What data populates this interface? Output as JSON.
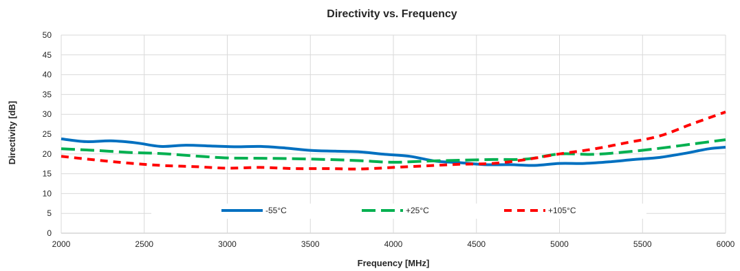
{
  "chart_data": {
    "type": "line",
    "title": "Directivity vs. Frequency",
    "xlabel": "Frequency [MHz]",
    "ylabel": "Directivity [dB]",
    "xlim": [
      2000,
      6000
    ],
    "ylim": [
      0,
      50
    ],
    "xticks": [
      "2000",
      "2500",
      "3000",
      "3500",
      "4000",
      "4500",
      "5000",
      "5500",
      "6000"
    ],
    "yticks": [
      "0",
      "5",
      "10",
      "15",
      "20",
      "25",
      "30",
      "35",
      "40",
      "45",
      "50"
    ],
    "grid": true,
    "legend_position": "bottom-center",
    "series": [
      {
        "name": "-55°C",
        "color": "#0070C0",
        "dash": "solid",
        "x": [
          2000,
          2150,
          2300,
          2450,
          2600,
          2750,
          2900,
          3050,
          3200,
          3350,
          3500,
          3650,
          3800,
          3950,
          4100,
          4250,
          4400,
          4550,
          4700,
          4850,
          5000,
          5150,
          5300,
          5450,
          5600,
          5750,
          5900,
          6000
        ],
        "y": [
          23.8,
          23.1,
          23.3,
          22.8,
          21.9,
          22.2,
          22.0,
          21.8,
          21.9,
          21.5,
          20.9,
          20.7,
          20.5,
          19.9,
          19.4,
          18.2,
          17.8,
          17.3,
          17.3,
          17.1,
          17.6,
          17.6,
          18.0,
          18.6,
          19.1,
          20.1,
          21.3,
          21.7
        ]
      },
      {
        "name": "+25°C",
        "color": "#00B050",
        "dash": "long-dash",
        "x": [
          2000,
          2200,
          2400,
          2600,
          2800,
          3000,
          3200,
          3400,
          3600,
          3800,
          4000,
          4200,
          4400,
          4600,
          4800,
          5000,
          5200,
          5400,
          5600,
          5800,
          6000
        ],
        "y": [
          21.3,
          20.9,
          20.4,
          20.1,
          19.5,
          19.0,
          18.9,
          18.8,
          18.6,
          18.3,
          17.9,
          18.2,
          18.4,
          18.6,
          18.7,
          20.0,
          19.9,
          20.5,
          21.4,
          22.5,
          23.6
        ]
      },
      {
        "name": "+105°C",
        "color": "#FF0000",
        "dash": "dash",
        "x": [
          2000,
          2200,
          2400,
          2600,
          2800,
          3000,
          3200,
          3400,
          3600,
          3800,
          4000,
          4200,
          4400,
          4600,
          4800,
          5000,
          5200,
          5400,
          5600,
          5800,
          6000
        ],
        "y": [
          19.4,
          18.5,
          17.7,
          17.1,
          16.8,
          16.4,
          16.6,
          16.3,
          16.3,
          16.2,
          16.6,
          17.0,
          17.4,
          17.6,
          18.6,
          20.0,
          21.2,
          22.8,
          24.5,
          27.6,
          30.6
        ]
      }
    ]
  }
}
